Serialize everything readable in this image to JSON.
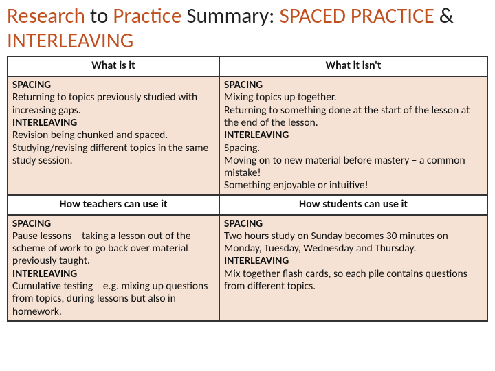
{
  "title": {
    "t1": "Research",
    "t2": " to ",
    "t3": "Practice",
    "t4": " Summary: ",
    "t5": "SPACED PRACTICE",
    "t6": " & ",
    "t7": "INTERLEAVING"
  },
  "headers": {
    "h1": "What is it",
    "h2": "What it isn't",
    "h3": "How teachers can use it",
    "h4": "How students can use it"
  },
  "cells": {
    "c1": {
      "s1": "SPACING",
      "b1": "Returning to topics previously studied with increasing gaps.",
      "s2": "INTERLEAVING",
      "b2": "Revision being chunked and spaced. Studying/revising different topics in the same study session."
    },
    "c2": {
      "s1": "SPACING",
      "b1": "Mixing topics up together.",
      "b1b": "Returning to something done at the start of the lesson at the end of the lesson.",
      "s2": "INTERLEAVING",
      "b2": "Spacing.",
      "b2b": "Moving on to new material before mastery – a common mistake!",
      "b2c": "Something enjoyable or intuitive!"
    },
    "c3": {
      "s1": "SPACING",
      "b1": "Pause lessons – taking a lesson out of the scheme of work to go back over material previously taught.",
      "s2": "INTERLEAVING",
      "b2": "Cumulative testing – e.g. mixing up questions from topics, during lessons but also in homework."
    },
    "c4": {
      "s1": "SPACING",
      "b1": "Two hours study on Sunday becomes 30 minutes on Monday, Tuesday, Wednesday and Thursday.",
      "s2": "INTERLEAVING",
      "b2": "Mix together flash cards, so each pile contains questions from different topics."
    }
  }
}
